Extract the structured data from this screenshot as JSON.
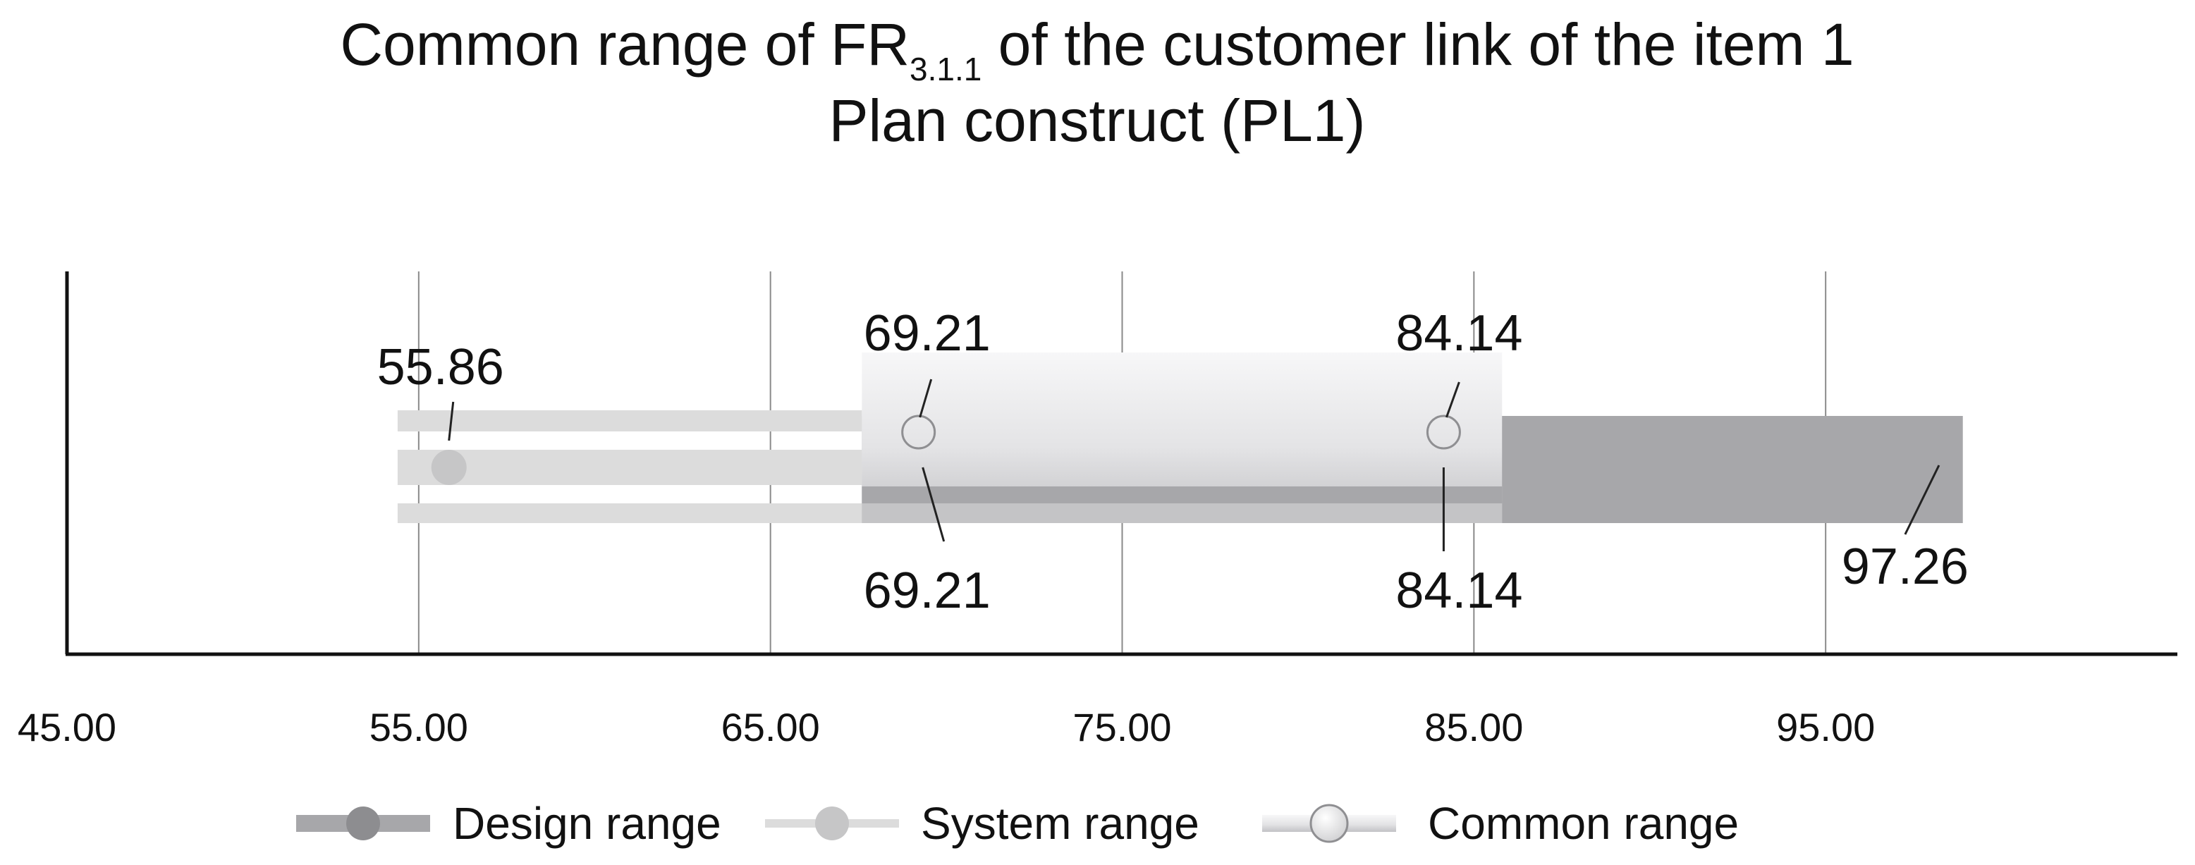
{
  "chart_data": {
    "type": "range",
    "title": {
      "prefix": "Common range of FR",
      "subscript": "3.1.1",
      "suffix": " of the customer link of the item 1",
      "line2": "Plan construct (PL1)"
    },
    "xlim": [
      45,
      105
    ],
    "x_ticks": [
      45,
      55,
      65,
      75,
      85,
      95
    ],
    "x_tick_labels": [
      "45.00",
      "55.00",
      "65.00",
      "75.00",
      "85.00",
      "95.00"
    ],
    "grid": "vertical",
    "legend_position": "bottom",
    "series": [
      {
        "name": "Design range",
        "range": [
          67.6,
          98.9
        ],
        "color": "#a7a7aa",
        "labels": [
          "97.26"
        ],
        "label_values": [
          97.26
        ]
      },
      {
        "name": "System range",
        "range": [
          54.4,
          67.6
        ],
        "color": "#dcdcdc",
        "labels": [
          "55.86"
        ],
        "label_values": [
          55.86
        ]
      },
      {
        "name": "Common range",
        "range": [
          67.6,
          85.8
        ],
        "color": "#e8e8ea",
        "labels": [
          "69.21",
          "84.14",
          "69.21",
          "84.14"
        ],
        "label_values": [
          69.21,
          84.14,
          69.21,
          84.14
        ]
      }
    ]
  }
}
